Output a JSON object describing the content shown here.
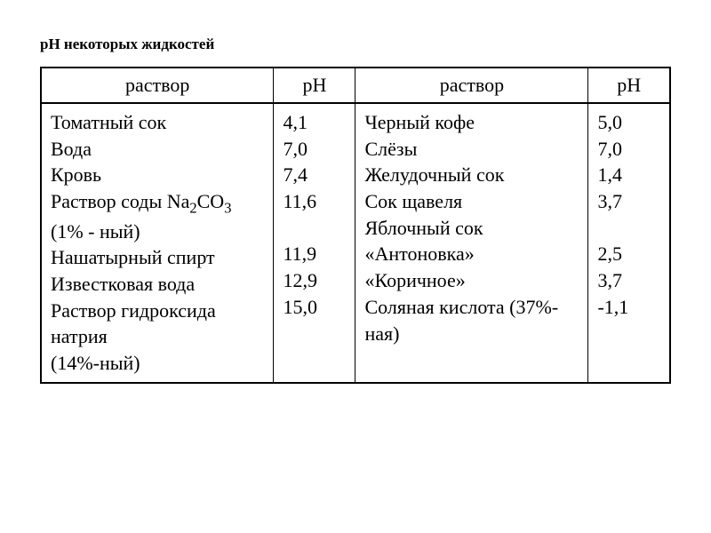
{
  "title": "рН некоторых жидкостей",
  "table": {
    "headers": {
      "solution": "раствор",
      "ph": "рН"
    },
    "columns": [
      {
        "id": "solution1",
        "class": "col-solution"
      },
      {
        "id": "ph1",
        "class": "col-ph"
      },
      {
        "id": "solution2",
        "class": "col-solution"
      },
      {
        "id": "ph2",
        "class": "col-ph"
      }
    ],
    "left": {
      "items": [
        "Томатный сок",
        "Вода",
        "Кровь",
        "Раствор соды Na₂CO₃ (1% - ный)",
        "Нашатырный спирт",
        "Известковая вода",
        "Раствор гидроксида натрия",
        "(14%-ный)"
      ],
      "ph_values": [
        "4,1",
        "7,0",
        "7,4",
        "11,6",
        "",
        "11,9",
        "12,9",
        "15,0"
      ]
    },
    "right": {
      "items": [
        "Черный кофе",
        "Слёзы",
        "Желудочный сок",
        "Сок щавеля",
        "Яблочный сок",
        "«Антоновка»",
        "«Коричное»",
        "Соляная кислота (37%-ная)"
      ],
      "ph_values": [
        "5,0",
        "7,0",
        "1,4",
        "3,7",
        "",
        "2,5",
        "3,7",
        "-1,1"
      ]
    },
    "border_color": "#000000",
    "background_color": "#ffffff",
    "font_family": "Times New Roman",
    "header_fontsize": 22,
    "cell_fontsize": 22,
    "title_fontsize": 17
  }
}
